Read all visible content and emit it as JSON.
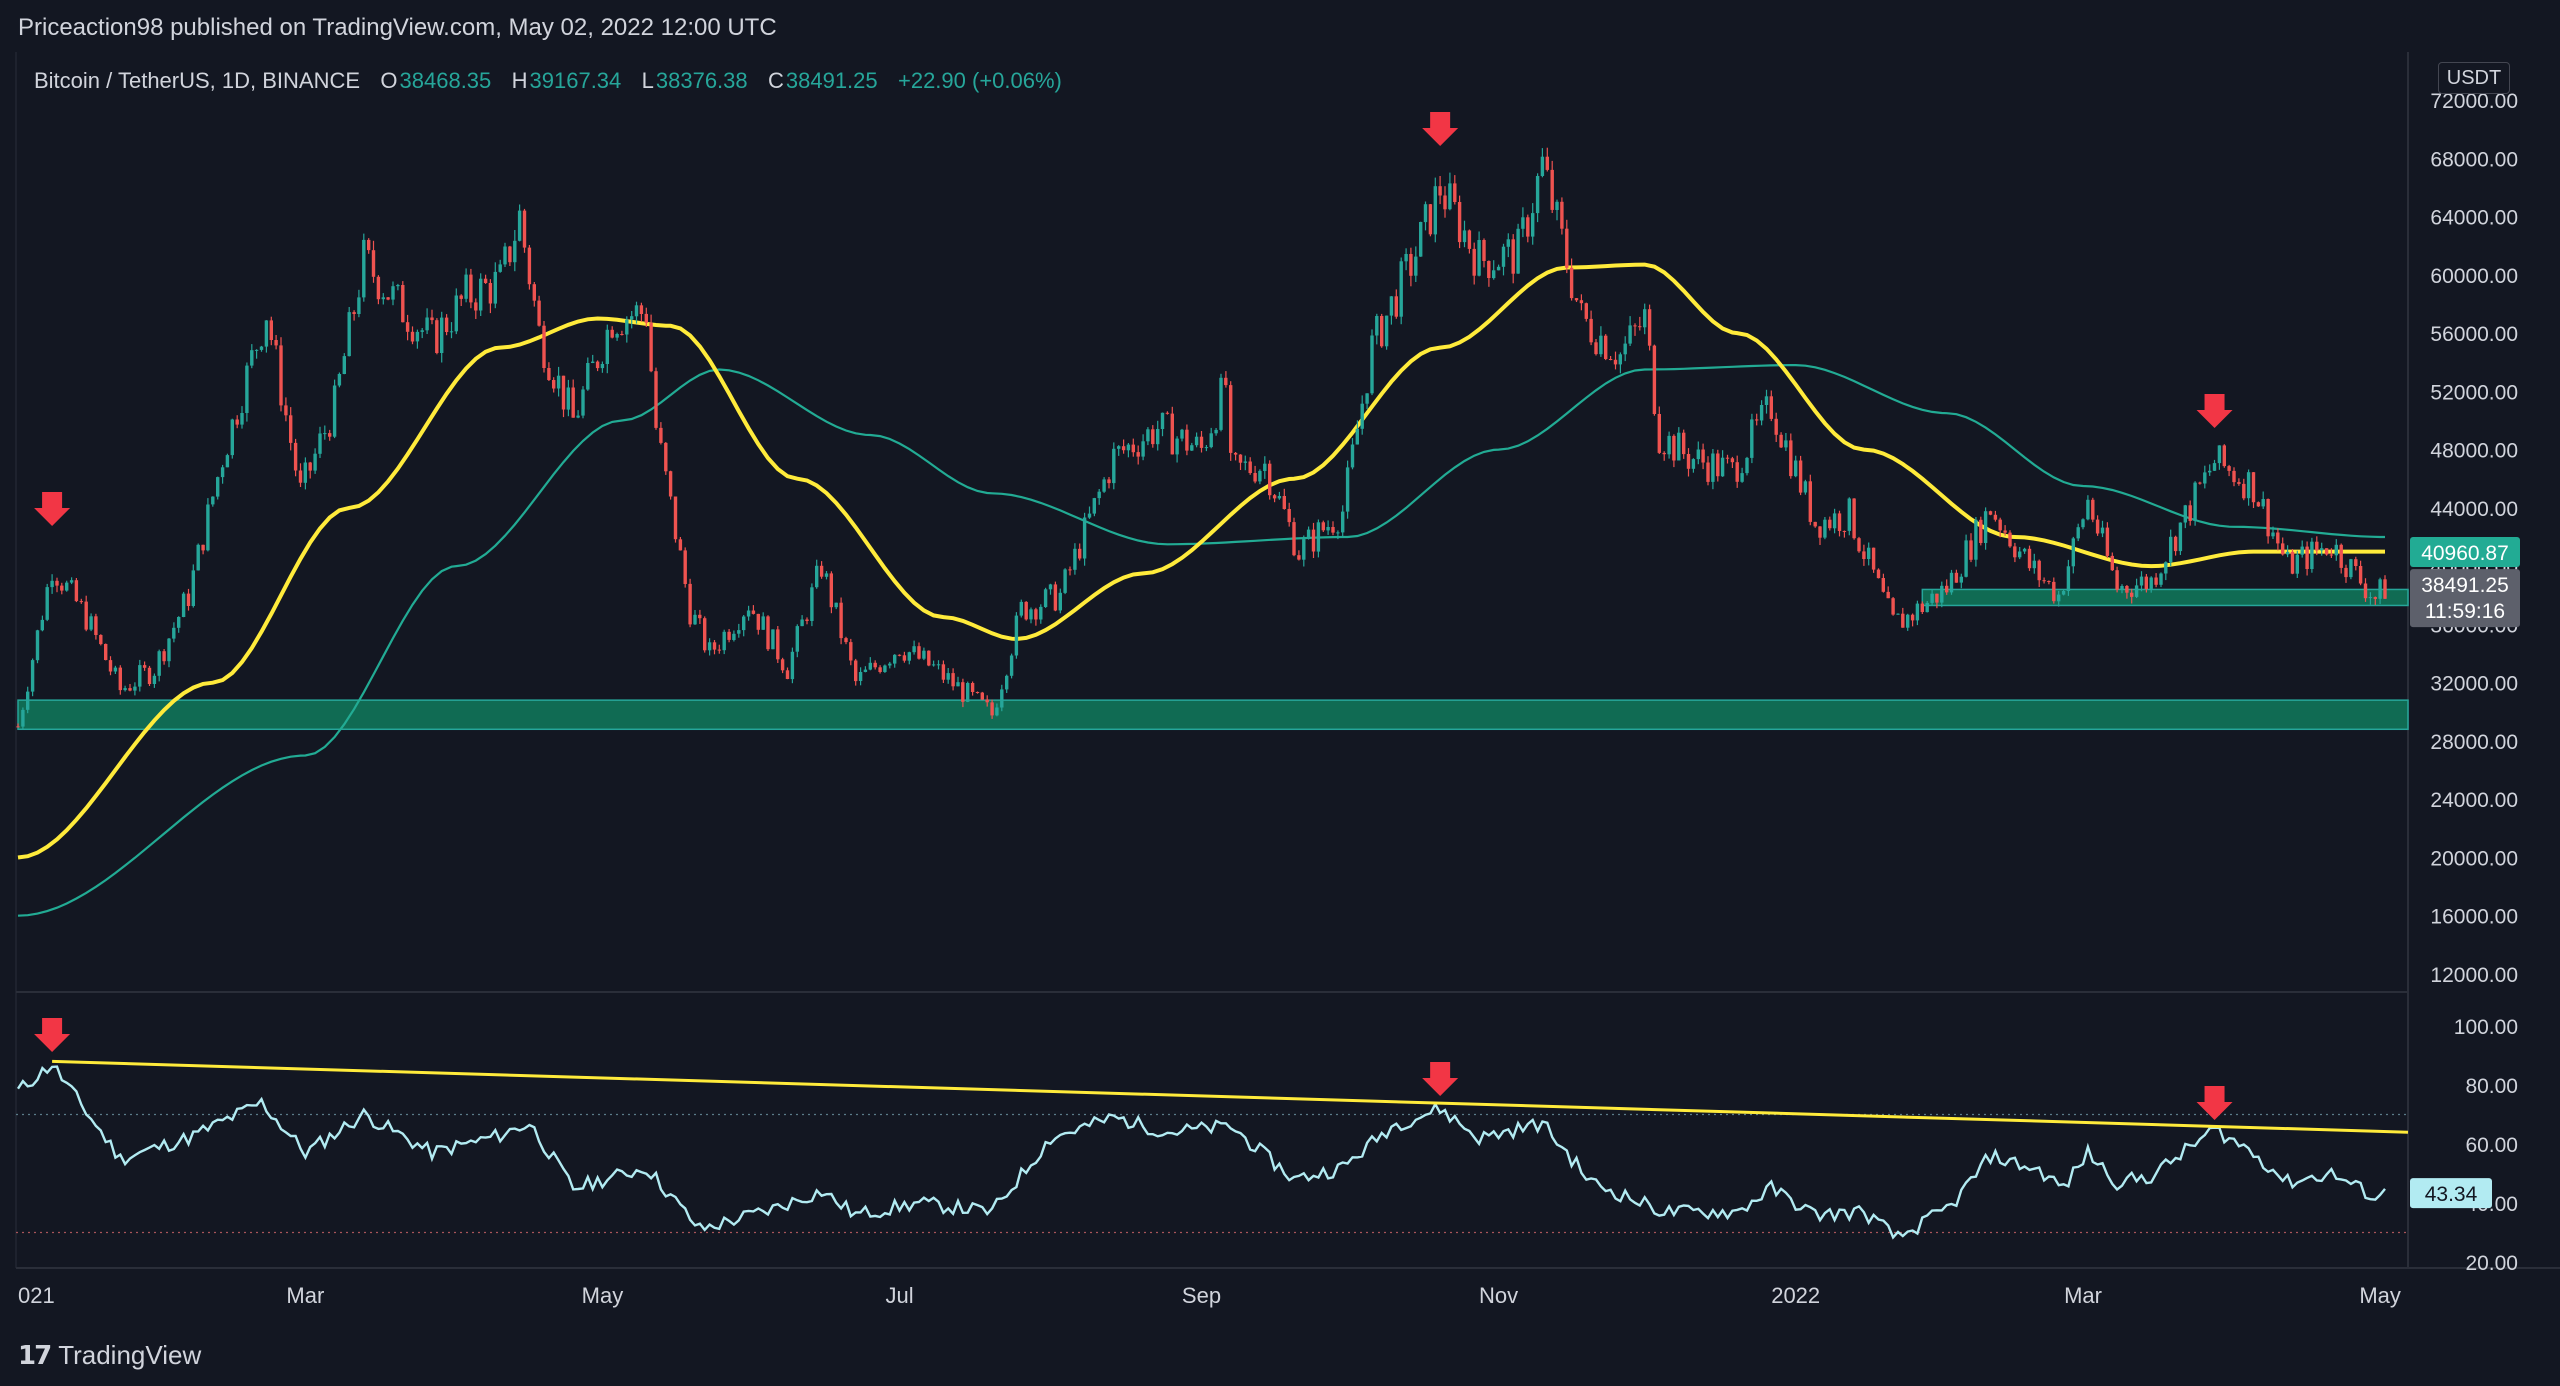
{
  "header": {
    "published_text": "Priceaction98 published on TradingView.com, May 02, 2022 12:00 UTC"
  },
  "legend": {
    "symbol": "Bitcoin / TetherUS, 1D, BINANCE",
    "o_label": "O",
    "o_value": "38468.35",
    "h_label": "H",
    "h_value": "39167.34",
    "l_label": "L",
    "l_value": "38376.38",
    "c_label": "C",
    "c_value": "38491.25",
    "change": "+22.90 (+0.06%)"
  },
  "price_axis": {
    "currency": "USDT",
    "ticks": [
      "72000.00",
      "68000.00",
      "64000.00",
      "60000.00",
      "56000.00",
      "52000.00",
      "48000.00",
      "44000.00",
      "40000.00",
      "36000.00",
      "32000.00",
      "28000.00",
      "24000.00",
      "20000.00",
      "16000.00",
      "12000.00"
    ],
    "ma_badge": "40960.87",
    "price_badge": "38491.25",
    "countdown_badge": "11:59:16"
  },
  "rsi_axis": {
    "ticks": [
      "100.00",
      "80.00",
      "60.00",
      "40.00",
      "20.00"
    ],
    "value_badge": "43.34"
  },
  "time_axis": {
    "labels": [
      "021",
      "Mar",
      "May",
      "Jul",
      "Sep",
      "Nov",
      "2022",
      "Mar",
      "May"
    ]
  },
  "footer": {
    "brand": "TradingView"
  },
  "colors": {
    "background": "#131722",
    "up": "#26a69a",
    "down": "#ef5350",
    "ma_fast": "#ffeb3b",
    "ma_slow": "#22ab94",
    "support_zone": "#117a5c",
    "rsi_line": "#b2ebf2",
    "arrow": "#f23645",
    "trendline": "#ffeb3b"
  },
  "chart_data": {
    "type": "candlestick",
    "symbol": "BTCUSDT",
    "interval": "1D",
    "x_range": [
      "2021-01-01",
      "2022-05-02"
    ],
    "ylim": [
      12000,
      73500
    ],
    "log_scale": false,
    "price_path": [
      [
        "2021-01-01",
        29000
      ],
      [
        "2021-01-08",
        40000
      ],
      [
        "2021-01-15",
        36500
      ],
      [
        "2021-01-22",
        31500
      ],
      [
        "2021-01-29",
        33000
      ],
      [
        "2021-02-05",
        38000
      ],
      [
        "2021-02-12",
        47500
      ],
      [
        "2021-02-21",
        57500
      ],
      [
        "2021-02-28",
        45000
      ],
      [
        "2021-03-07",
        51000
      ],
      [
        "2021-03-13",
        61000
      ],
      [
        "2021-03-20",
        58000
      ],
      [
        "2021-03-27",
        55500
      ],
      [
        "2021-04-03",
        58500
      ],
      [
        "2021-04-10",
        59500
      ],
      [
        "2021-04-14",
        64000
      ],
      [
        "2021-04-18",
        56000
      ],
      [
        "2021-04-25",
        50000
      ],
      [
        "2021-05-03",
        57000
      ],
      [
        "2021-05-10",
        57500
      ],
      [
        "2021-05-12",
        49500
      ],
      [
        "2021-05-19",
        37000
      ],
      [
        "2021-05-23",
        34000
      ],
      [
        "2021-05-31",
        37500
      ],
      [
        "2021-06-08",
        33000
      ],
      [
        "2021-06-15",
        40000
      ],
      [
        "2021-06-22",
        32000
      ],
      [
        "2021-07-01",
        34500
      ],
      [
        "2021-07-08",
        33000
      ],
      [
        "2021-07-20",
        29800
      ],
      [
        "2021-07-26",
        37000
      ],
      [
        "2021-08-03",
        38000
      ],
      [
        "2021-08-14",
        47500
      ],
      [
        "2021-08-23",
        49500
      ],
      [
        "2021-09-01",
        48000
      ],
      [
        "2021-09-06",
        52500
      ],
      [
        "2021-09-07",
        46500
      ],
      [
        "2021-09-14",
        47000
      ],
      [
        "2021-09-21",
        41000
      ],
      [
        "2021-09-30",
        43800
      ],
      [
        "2021-10-06",
        55000
      ],
      [
        "2021-10-15",
        61500
      ],
      [
        "2021-10-20",
        66000
      ],
      [
        "2021-10-28",
        61000
      ],
      [
        "2021-11-05",
        61500
      ],
      [
        "2021-11-10",
        67500
      ],
      [
        "2021-11-18",
        57000
      ],
      [
        "2021-11-26",
        54500
      ],
      [
        "2021-12-01",
        57000
      ],
      [
        "2021-12-04",
        49000
      ],
      [
        "2021-12-10",
        47500
      ],
      [
        "2021-12-19",
        46500
      ],
      [
        "2021-12-27",
        51000
      ],
      [
        "2022-01-05",
        43000
      ],
      [
        "2022-01-12",
        43500
      ],
      [
        "2022-01-21",
        36000
      ],
      [
        "2022-01-24",
        36500
      ],
      [
        "2022-02-01",
        38500
      ],
      [
        "2022-02-10",
        44000
      ],
      [
        "2022-02-18",
        40000
      ],
      [
        "2022-02-24",
        38000
      ],
      [
        "2022-03-02",
        44500
      ],
      [
        "2022-03-08",
        38500
      ],
      [
        "2022-03-15",
        39000
      ],
      [
        "2022-03-28",
        47200
      ],
      [
        "2022-04-05",
        45500
      ],
      [
        "2022-04-12",
        40000
      ],
      [
        "2022-04-21",
        41500
      ],
      [
        "2022-04-30",
        37800
      ],
      [
        "2022-05-02",
        38491
      ]
    ],
    "ma_fast_path": [
      [
        "2021-01-01",
        20000
      ],
      [
        "2021-02-10",
        32000
      ],
      [
        "2021-03-10",
        44000
      ],
      [
        "2021-04-10",
        55000
      ],
      [
        "2021-04-30",
        57000
      ],
      [
        "2021-05-15",
        56500
      ],
      [
        "2021-06-10",
        46000
      ],
      [
        "2021-07-10",
        36500
      ],
      [
        "2021-07-25",
        35000
      ],
      [
        "2021-08-20",
        39500
      ],
      [
        "2021-09-20",
        46000
      ],
      [
        "2021-10-20",
        55000
      ],
      [
        "2021-11-15",
        60500
      ],
      [
        "2021-12-01",
        60700
      ],
      [
        "2021-12-20",
        56000
      ],
      [
        "2022-01-15",
        48000
      ],
      [
        "2022-02-15",
        42000
      ],
      [
        "2022-03-15",
        40000
      ],
      [
        "2022-04-05",
        41000
      ],
      [
        "2022-05-02",
        41000
      ]
    ],
    "ma_slow_path": [
      [
        "2021-01-01",
        16000
      ],
      [
        "2021-03-01",
        27000
      ],
      [
        "2021-04-01",
        40000
      ],
      [
        "2021-05-05",
        50000
      ],
      [
        "2021-05-25",
        53500
      ],
      [
        "2021-06-25",
        49000
      ],
      [
        "2021-07-20",
        45000
      ],
      [
        "2021-08-25",
        41500
      ],
      [
        "2021-10-01",
        42000
      ],
      [
        "2021-11-01",
        48000
      ],
      [
        "2021-12-01",
        53500
      ],
      [
        "2022-01-01",
        53800
      ],
      [
        "2022-02-01",
        50500
      ],
      [
        "2022-03-01",
        45500
      ],
      [
        "2022-04-01",
        42700
      ],
      [
        "2022-05-02",
        42000
      ]
    ],
    "support_zones": [
      {
        "from": 28800,
        "to": 30800,
        "start": "2021-01-01"
      },
      {
        "from": 37300,
        "to": 38400,
        "start": "2022-01-27"
      }
    ],
    "arrows": [
      "2021-01-08",
      "2021-10-20",
      "2022-03-28"
    ],
    "rsi": {
      "ylim": [
        20,
        100
      ],
      "levels": [
        70,
        30
      ],
      "current": 43.34,
      "path": [
        [
          "2021-01-01",
          78
        ],
        [
          "2021-01-08",
          87
        ],
        [
          "2021-01-22",
          55
        ],
        [
          "2021-02-05",
          62
        ],
        [
          "2021-02-20",
          74
        ],
        [
          "2021-03-01",
          57
        ],
        [
          "2021-03-13",
          70
        ],
        [
          "2021-03-27",
          57
        ],
        [
          "2021-04-10",
          63
        ],
        [
          "2021-04-16",
          67
        ],
        [
          "2021-04-25",
          45
        ],
        [
          "2021-05-10",
          52
        ],
        [
          "2021-05-21",
          31
        ],
        [
          "2021-06-05",
          38
        ],
        [
          "2021-06-15",
          44
        ],
        [
          "2021-06-22",
          36
        ],
        [
          "2021-07-05",
          40
        ],
        [
          "2021-07-20",
          37
        ],
        [
          "2021-08-01",
          62
        ],
        [
          "2021-08-14",
          69
        ],
        [
          "2021-08-25",
          64
        ],
        [
          "2021-09-07",
          66
        ],
        [
          "2021-09-20",
          48
        ],
        [
          "2021-09-30",
          52
        ],
        [
          "2021-10-10",
          66
        ],
        [
          "2021-10-20",
          72
        ],
        [
          "2021-10-28",
          62
        ],
        [
          "2021-11-10",
          67
        ],
        [
          "2021-11-20",
          47
        ],
        [
          "2021-12-05",
          37
        ],
        [
          "2021-12-20",
          37
        ],
        [
          "2021-12-27",
          45
        ],
        [
          "2022-01-05",
          36
        ],
        [
          "2022-01-15",
          37
        ],
        [
          "2022-01-22",
          28
        ],
        [
          "2022-02-02",
          39
        ],
        [
          "2022-02-10",
          56
        ],
        [
          "2022-02-20",
          51
        ],
        [
          "2022-02-25",
          45
        ],
        [
          "2022-03-02",
          57
        ],
        [
          "2022-03-08",
          47
        ],
        [
          "2022-03-15",
          49
        ],
        [
          "2022-03-28",
          65
        ],
        [
          "2022-04-05",
          57
        ],
        [
          "2022-04-12",
          47
        ],
        [
          "2022-04-21",
          50
        ],
        [
          "2022-04-30",
          42
        ],
        [
          "2022-05-02",
          43.34
        ]
      ],
      "trendline": [
        [
          "2021-01-08",
          88
        ],
        [
          "2022-05-02",
          64
        ]
      ],
      "arrows": [
        "2021-01-08",
        "2021-10-20",
        "2022-03-28"
      ]
    }
  }
}
